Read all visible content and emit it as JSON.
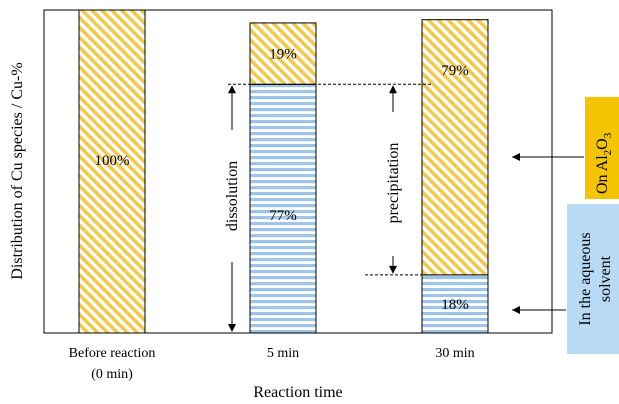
{
  "chart_data": {
    "type": "bar",
    "stacked": true,
    "categories": [
      "Before reaction\n(0 min)",
      "5 min",
      "30 min"
    ],
    "series": [
      {
        "name": "In the aqueous solvent",
        "values": [
          0,
          77,
          18
        ],
        "color": "#9ec5e8",
        "pattern": "horizontal-stripes"
      },
      {
        "name": "On Al2O3",
        "values": [
          100,
          19,
          79
        ],
        "color": "#f2c94c",
        "pattern": "diagonal-stripes"
      }
    ],
    "data_labels": [
      "100%",
      "77%",
      "19%",
      "18%",
      "79%"
    ],
    "ylim": [
      0,
      100
    ],
    "xlabel": "Reaction time",
    "ylabel": "Distribution of Cu species / Cu-%",
    "grid": false,
    "annotations": {
      "dissolution": "dissolution",
      "precipitation": "precipitation"
    },
    "legend": {
      "placement": "right",
      "alumina_label": "On Al",
      "alumina_sub": "2",
      "alumina_mid": "O",
      "alumina_sub2": "3",
      "alumina_color": "#f5c400",
      "aqueous_line1": "In the aqueous",
      "aqueous_line2": "solvent",
      "aqueous_color": "#b8daf5"
    }
  }
}
